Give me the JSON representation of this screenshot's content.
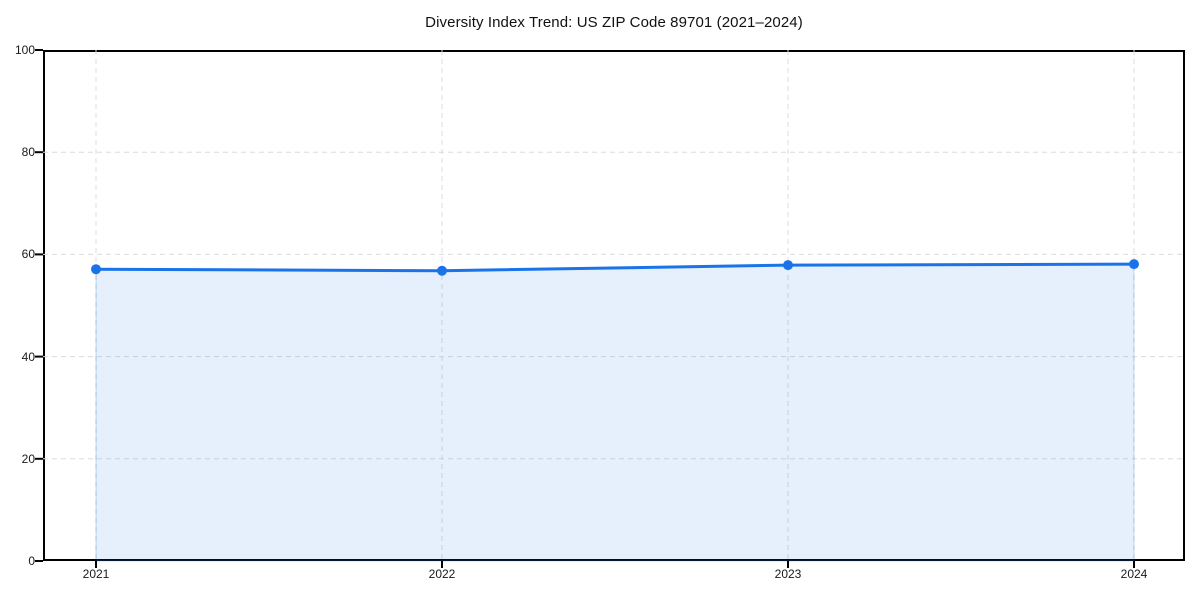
{
  "chart_data": {
    "type": "area",
    "title": "Diversity Index Trend: US ZIP Code 89701 (2021–2024)",
    "x": [
      "2021",
      "2022",
      "2023",
      "2024"
    ],
    "series": [
      {
        "name": "Diversity Index",
        "values": [
          57.1,
          56.8,
          57.9,
          58.1
        ]
      }
    ],
    "xlabel": "",
    "ylabel": "",
    "ylim": [
      0,
      100
    ],
    "yticks": [
      0,
      20,
      40,
      60,
      80,
      100
    ],
    "grid": true,
    "legend": false,
    "marker": "circle",
    "colors": {
      "line": "#1a73e8",
      "marker": "#1a73e8",
      "area_fill": "rgba(26,115,232,0.11)",
      "area_edge": "rgba(26,115,232,0.25)",
      "gridline": "#dcdcdc",
      "axis_frame": "#000000",
      "tick_text": "#1a1a1a",
      "background": "#ffffff"
    }
  }
}
